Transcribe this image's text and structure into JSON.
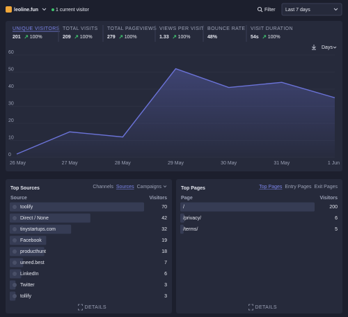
{
  "header": {
    "site": "leoline.fun",
    "live": "1 current visitor",
    "filter": "Filter",
    "period": "Last 7 days"
  },
  "stats": [
    {
      "label": "UNIQUE VISITORS",
      "value": "201",
      "change": "100%"
    },
    {
      "label": "TOTAL VISITS",
      "value": "209",
      "change": "100%"
    },
    {
      "label": "TOTAL PAGEVIEWS",
      "value": "279",
      "change": "100%"
    },
    {
      "label": "VIEWS PER VISIT",
      "value": "1.33",
      "change": "100%"
    },
    {
      "label": "BOUNCE RATE",
      "value": "48%"
    },
    {
      "label": "VISIT DURATION",
      "value": "54s",
      "change": "100%"
    }
  ],
  "interval": "Days",
  "chart_data": {
    "type": "line",
    "categories": [
      "26 May",
      "27 May",
      "28 May",
      "29 May",
      "30 May",
      "31 May",
      "1 Jun"
    ],
    "values": [
      2,
      15,
      12,
      52,
      41,
      44,
      35
    ],
    "color": "#6b73d8",
    "ylim": [
      0,
      60
    ],
    "yticks": [
      0,
      10,
      20,
      30,
      40,
      50,
      60
    ]
  },
  "sources": {
    "title": "Top Sources",
    "tabs": [
      "Channels",
      "Sources",
      "Campaigns"
    ],
    "active_tab": 1,
    "columns": [
      "Source",
      "Visitors"
    ],
    "rows": [
      {
        "name": "toolify",
        "visitors": 70
      },
      {
        "name": "Direct / None",
        "visitors": 42
      },
      {
        "name": "tinystartups.com",
        "visitors": 32
      },
      {
        "name": "Facebook",
        "visitors": 19
      },
      {
        "name": "producthunt",
        "visitors": 18
      },
      {
        "name": "uneed.best",
        "visitors": 7
      },
      {
        "name": "LinkedIn",
        "visitors": 6
      },
      {
        "name": "Twitter",
        "visitors": 3
      },
      {
        "name": "tollify",
        "visitors": 3
      }
    ],
    "details": "DETAILS"
  },
  "pages": {
    "title": "Top Pages",
    "tabs": [
      "Top Pages",
      "Entry Pages",
      "Exit Pages"
    ],
    "active_tab": 0,
    "columns": [
      "Page",
      "Visitors"
    ],
    "rows": [
      {
        "name": "/",
        "visitors": 200
      },
      {
        "name": "/privacy/",
        "visitors": 6
      },
      {
        "name": "/terms/",
        "visitors": 5
      }
    ],
    "details": "DETAILS"
  }
}
